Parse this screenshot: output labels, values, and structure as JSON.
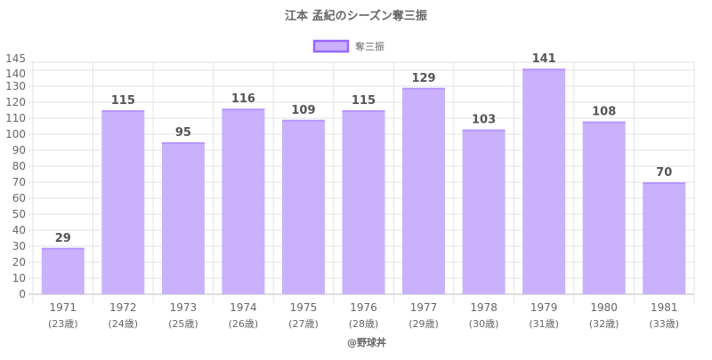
{
  "chart_data": {
    "type": "bar",
    "title": "江本 孟紀のシーズン奪三振",
    "legend": {
      "label": "奪三振",
      "placement": "top"
    },
    "categories": [
      "1971",
      "1972",
      "1973",
      "1974",
      "1975",
      "1976",
      "1977",
      "1978",
      "1979",
      "1980",
      "1981"
    ],
    "sublabels": [
      "(23歳)",
      "(24歳)",
      "(25歳)",
      "(26歳)",
      "(27歳)",
      "(28歳)",
      "(29歳)",
      "(30歳)",
      "(31歳)",
      "(32歳)",
      "(33歳)"
    ],
    "values": [
      29,
      115,
      95,
      116,
      109,
      115,
      129,
      103,
      141,
      108,
      70
    ],
    "ylim": [
      0,
      145
    ],
    "yticks": [
      0,
      10,
      20,
      30,
      40,
      50,
      60,
      70,
      80,
      90,
      100,
      110,
      120,
      130,
      140,
      145
    ],
    "grid": true,
    "colors": {
      "bar": "#c9b1fd",
      "border": "#9966ff"
    },
    "footer": "@野球丼"
  }
}
